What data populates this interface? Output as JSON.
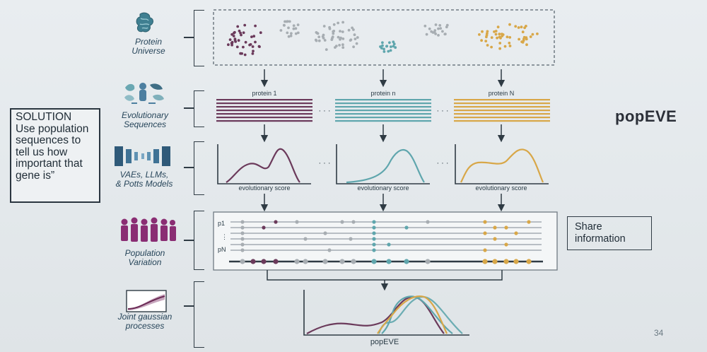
{
  "rows": {
    "protein_universe": {
      "label": "Protein\nUniverse"
    },
    "evolutionary_sequences": {
      "label": "Evolutionary\nSequences"
    },
    "models": {
      "label": "VAEs, LLMs,\n& Potts Models"
    },
    "population_variation": {
      "label": "Population\nVariation"
    },
    "joint_gp": {
      "label": "Joint gaussian\nprocesses"
    }
  },
  "proteins": [
    {
      "label": "protein 1",
      "color": "#6b3a5b"
    },
    {
      "label": "protein n",
      "color": "#5fa6ad"
    },
    {
      "label": "protein N",
      "color": "#d8a748"
    }
  ],
  "ellipsis": "· · ·",
  "score_label": "evolutionary score",
  "population": {
    "first_label": "p1",
    "last_label": "pN"
  },
  "solution_text": "SOLUTION\nUse population sequences to tell us how important that gene is”",
  "share_text": "Share\ninformation",
  "final_label": "popEVE",
  "logo": {
    "text": "popEVE"
  },
  "page_number": "34",
  "colors": {
    "purple": "#6b3a5b",
    "teal": "#5fa6ad",
    "gold": "#d8a748",
    "grey": "#a7adb2"
  }
}
